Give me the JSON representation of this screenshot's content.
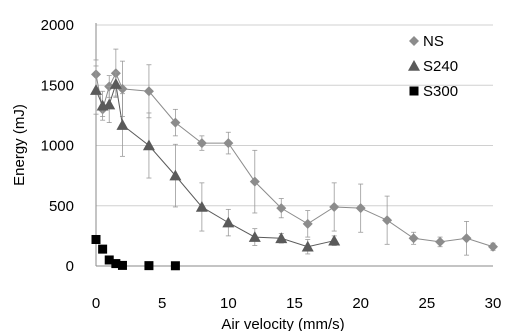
{
  "chart_data": {
    "type": "scatter",
    "xlabel": "Air velocity (mm/s)",
    "ylabel": "Energy (mJ)",
    "xlim": [
      0,
      30
    ],
    "ylim": [
      0,
      2000
    ],
    "x_ticks": [
      0,
      5,
      10,
      15,
      20,
      25,
      30
    ],
    "y_ticks": [
      0,
      500,
      1000,
      1500,
      2000
    ],
    "grid": "horizontal",
    "legend": "top-right",
    "series": [
      {
        "name": "NS",
        "marker": "diamond",
        "color": "#8c8c8c",
        "connected": true,
        "points": [
          {
            "x": 0,
            "y": 1590,
            "err": 120
          },
          {
            "x": 0.5,
            "y": 1300,
            "err": 60
          },
          {
            "x": 1,
            "y": 1490,
            "err": 90
          },
          {
            "x": 1.5,
            "y": 1600,
            "err": 200
          },
          {
            "x": 2,
            "y": 1470,
            "err": 230
          },
          {
            "x": 4,
            "y": 1450,
            "err": 220
          },
          {
            "x": 6,
            "y": 1190,
            "err": 110
          },
          {
            "x": 8,
            "y": 1020,
            "err": 60
          },
          {
            "x": 10,
            "y": 1020,
            "err": 90
          },
          {
            "x": 12,
            "y": 700,
            "err": 260
          },
          {
            "x": 14,
            "y": 480,
            "err": 80
          },
          {
            "x": 16,
            "y": 350,
            "err": 110
          },
          {
            "x": 18,
            "y": 490,
            "err": 200
          },
          {
            "x": 20,
            "y": 480,
            "err": 200
          },
          {
            "x": 22,
            "y": 380,
            "err": 200
          },
          {
            "x": 24,
            "y": 230,
            "err": 50
          },
          {
            "x": 26,
            "y": 200,
            "err": 40
          },
          {
            "x": 28,
            "y": 230,
            "err": 140
          },
          {
            "x": 30,
            "y": 160,
            "err": 30
          }
        ]
      },
      {
        "name": "S240",
        "marker": "triangle",
        "color": "#5a5a5a",
        "connected": true,
        "points": [
          {
            "x": 0,
            "y": 1460,
            "err": 200
          },
          {
            "x": 0.5,
            "y": 1330,
            "err": 120
          },
          {
            "x": 1,
            "y": 1340,
            "err": 150
          },
          {
            "x": 1.5,
            "y": 1510,
            "err": 100
          },
          {
            "x": 2,
            "y": 1170,
            "err": 260
          },
          {
            "x": 4,
            "y": 1000,
            "err": 270
          },
          {
            "x": 6,
            "y": 750,
            "err": 260
          },
          {
            "x": 8,
            "y": 490,
            "err": 200
          },
          {
            "x": 10,
            "y": 360,
            "err": 110
          },
          {
            "x": 12,
            "y": 240,
            "err": 70
          },
          {
            "x": 14,
            "y": 230,
            "err": 40
          },
          {
            "x": 16,
            "y": 160,
            "err": 60
          },
          {
            "x": 18,
            "y": 210,
            "err": 40
          }
        ]
      },
      {
        "name": "S300",
        "marker": "square",
        "color": "#000000",
        "connected": false,
        "points": [
          {
            "x": 0,
            "y": 220,
            "err": 0
          },
          {
            "x": 0.5,
            "y": 140,
            "err": 0
          },
          {
            "x": 1,
            "y": 50,
            "err": 0
          },
          {
            "x": 1.5,
            "y": 20,
            "err": 0
          },
          {
            "x": 2,
            "y": 5,
            "err": 0
          },
          {
            "x": 4,
            "y": 3,
            "err": 0
          },
          {
            "x": 6,
            "y": 2,
            "err": 0
          }
        ]
      }
    ]
  }
}
